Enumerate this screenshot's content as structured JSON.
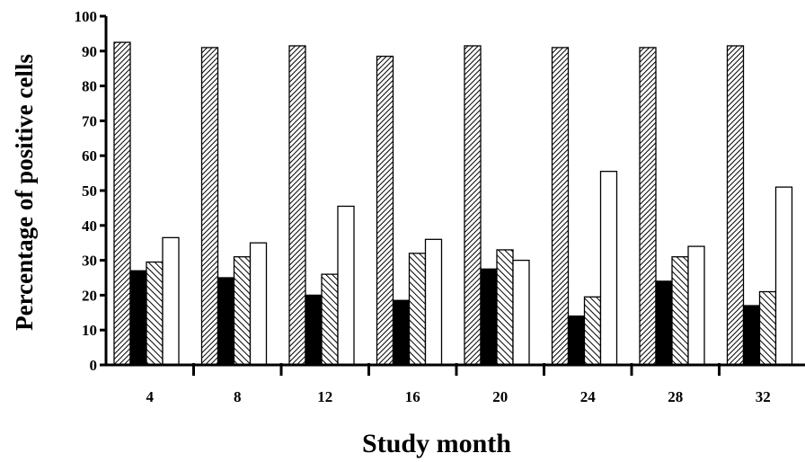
{
  "chart_data": {
    "type": "bar",
    "title": "",
    "xlabel": "Study month",
    "ylabel": "Percentage of positive cells",
    "categories": [
      "4",
      "8",
      "12",
      "16",
      "20",
      "24",
      "28",
      "32"
    ],
    "ylim": [
      0,
      100
    ],
    "yticks": [
      0,
      10,
      20,
      30,
      40,
      50,
      60,
      70,
      80,
      90,
      100
    ],
    "grid": false,
    "legend": "none",
    "series": [
      {
        "pattern": "dense-diagonal-hatch",
        "values": [
          92.5,
          91,
          91.5,
          88.5,
          91.5,
          91,
          91,
          91.5
        ]
      },
      {
        "pattern": "solid-black",
        "values": [
          27,
          25,
          20,
          18.5,
          27.5,
          14,
          24,
          17
        ]
      },
      {
        "pattern": "diagonal-hatch",
        "values": [
          29.5,
          31,
          26,
          32,
          33,
          19.5,
          31,
          21
        ]
      },
      {
        "pattern": "white",
        "values": [
          36.5,
          35,
          45.5,
          36,
          30,
          55.5,
          34,
          51
        ]
      }
    ],
    "colors": {
      "ink": "#000000",
      "background": "#ffffff"
    }
  }
}
